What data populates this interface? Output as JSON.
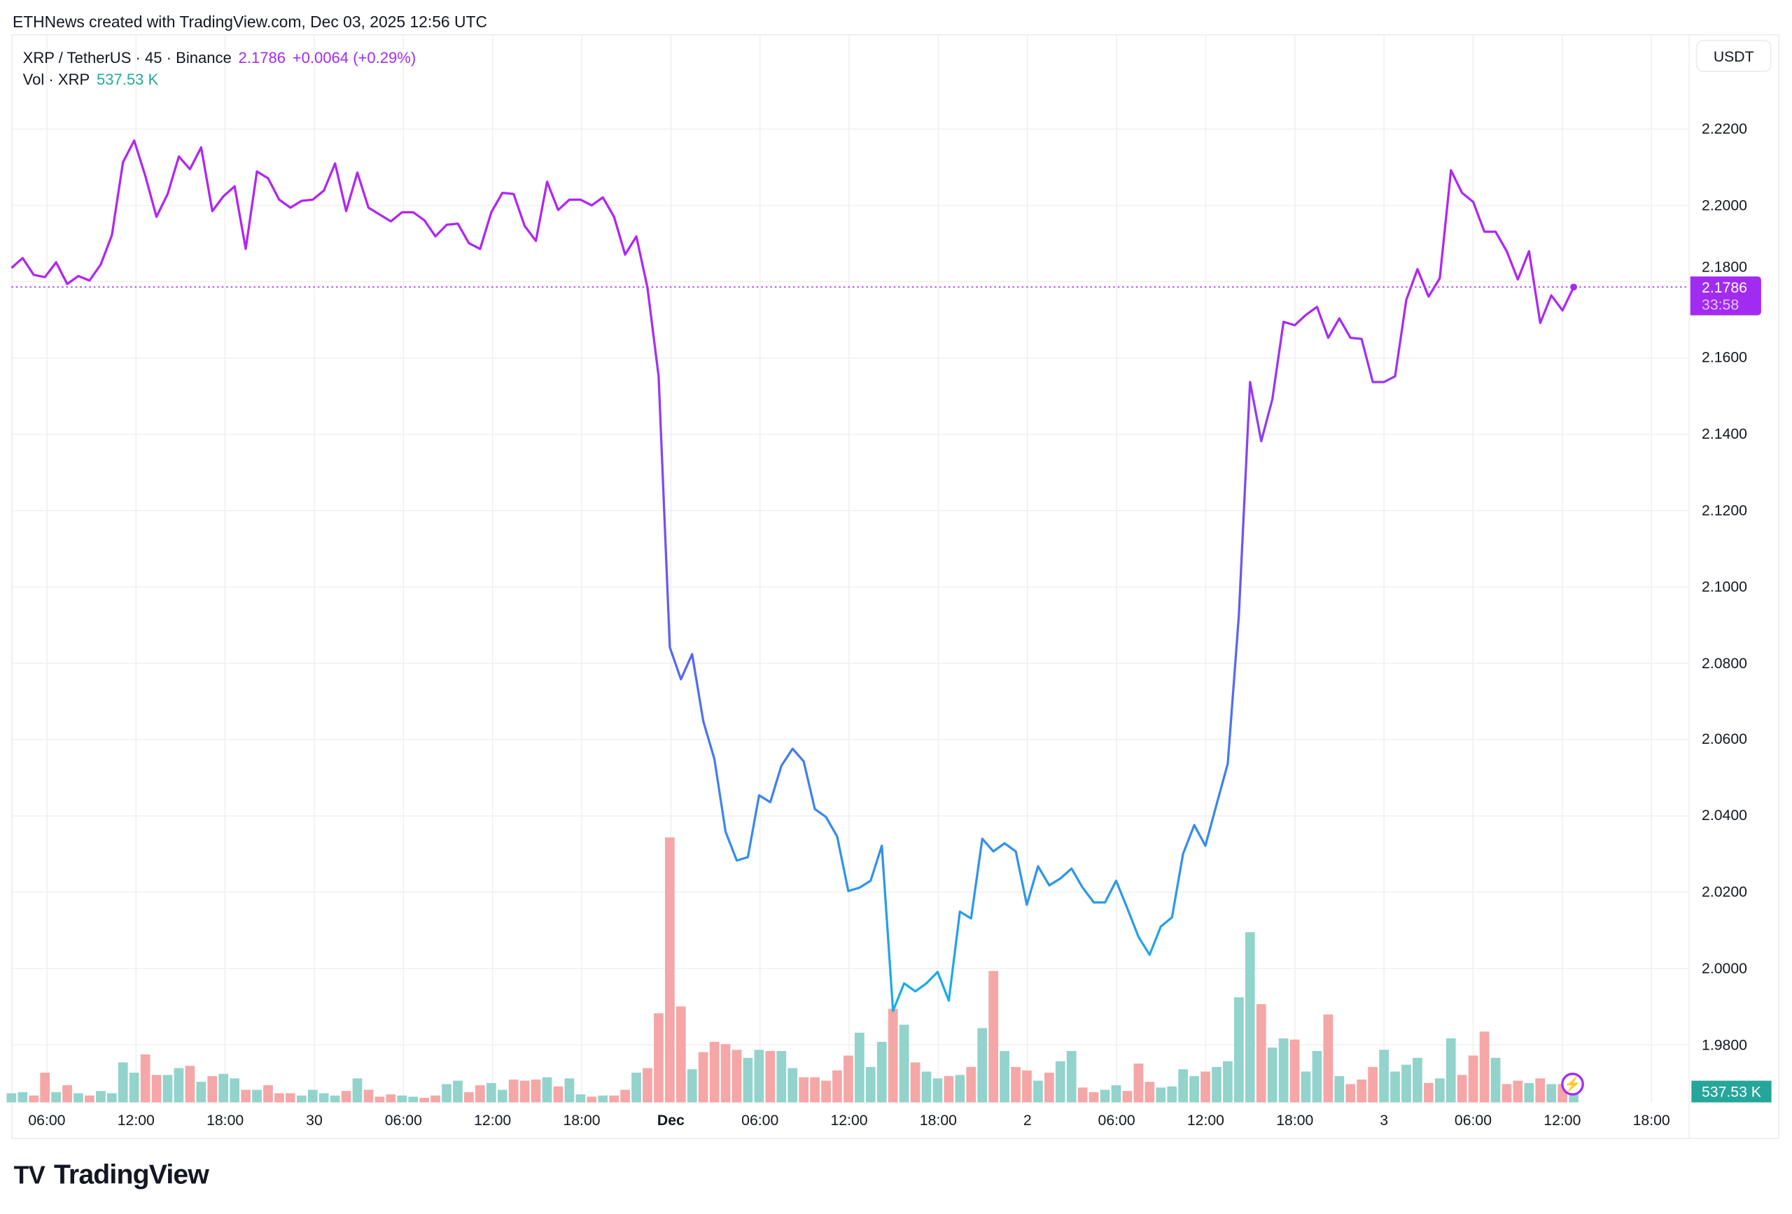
{
  "header": {
    "credit": "ETHNews created with TradingView.com, Dec 03, 2025 12:56 UTC"
  },
  "legend": {
    "symbol": "XRP / TetherUS · 45 · Binance",
    "price": "2.1786",
    "change": "+0.0064 (+0.29%)",
    "vol_label": "Vol · XRP",
    "vol_value": "537.53 K"
  },
  "currency_button": "USDT",
  "price_tag": {
    "price": "2.1786",
    "countdown": "33:58"
  },
  "volume_tag": "537.53 K",
  "logo": {
    "mark": "TV",
    "text": "TradingView"
  },
  "colors": {
    "accent": "#a22bf2",
    "line_top": "#b025f5",
    "line_mid": "#5a63f2",
    "line_bottom": "#16b0e8",
    "vol_up": "#92d3cb",
    "vol_down": "#f5a6a6",
    "vol_tag": "#26a69a"
  },
  "chart_data": {
    "type": "line",
    "title": "XRP / TetherUS · 45 · Binance",
    "ylabel": "USDT",
    "ylim": [
      1.965,
      2.245
    ],
    "y_ticks": [
      "2.2200",
      "2.2000",
      "2.1800",
      "2.1600",
      "2.1400",
      "2.1200",
      "2.1000",
      "2.0800",
      "2.0600",
      "2.0400",
      "2.0200",
      "2.0000",
      "1.9800"
    ],
    "x_ticks": [
      {
        "label": "06:00",
        "bold": false
      },
      {
        "label": "12:00",
        "bold": false
      },
      {
        "label": "18:00",
        "bold": false
      },
      {
        "label": "30",
        "bold": false
      },
      {
        "label": "06:00",
        "bold": false
      },
      {
        "label": "12:00",
        "bold": false
      },
      {
        "label": "18:00",
        "bold": false
      },
      {
        "label": "Dec",
        "bold": true
      },
      {
        "label": "06:00",
        "bold": false
      },
      {
        "label": "12:00",
        "bold": false
      },
      {
        "label": "18:00",
        "bold": false
      },
      {
        "label": "2",
        "bold": false
      },
      {
        "label": "06:00",
        "bold": false
      },
      {
        "label": "12:00",
        "bold": false
      },
      {
        "label": "18:00",
        "bold": false
      },
      {
        "label": "3",
        "bold": false
      },
      {
        "label": "06:00",
        "bold": false
      },
      {
        "label": "12:00",
        "bold": false
      },
      {
        "label": "18:00",
        "bold": false
      }
    ],
    "grid": true,
    "last_price": 2.1786,
    "series": [
      {
        "name": "Close",
        "values": [
          2.1836,
          2.1862,
          2.1818,
          2.1812,
          2.1851,
          2.1794,
          2.1815,
          2.1803,
          2.1845,
          2.1922,
          2.2113,
          2.217,
          2.2077,
          2.197,
          2.203,
          2.2128,
          2.2095,
          2.2152,
          2.1985,
          2.2024,
          2.205,
          2.1886,
          2.2089,
          2.2071,
          2.2015,
          2.1994,
          2.2012,
          2.2015,
          2.2039,
          2.211,
          2.1985,
          2.2086,
          2.1994,
          2.1976,
          2.1958,
          2.1982,
          2.1982,
          2.1961,
          2.1919,
          2.1949,
          2.1952,
          2.1901,
          2.1886,
          2.1982,
          2.2033,
          2.203,
          2.1946,
          2.1907,
          2.2062,
          2.1988,
          2.2015,
          2.2015,
          2.2,
          2.2021,
          2.197,
          2.1871,
          2.1919,
          2.1785,
          2.1552,
          2.0842,
          2.0758,
          2.0824,
          2.0648,
          2.0549,
          2.0358,
          2.0283,
          2.0292,
          2.0454,
          2.0436,
          2.0531,
          2.0576,
          2.0543,
          2.0418,
          2.0397,
          2.0346,
          2.0203,
          2.0212,
          2.023,
          2.0322,
          1.9889,
          1.9961,
          1.994,
          1.9961,
          1.9991,
          1.9916,
          2.0149,
          2.0131,
          2.034,
          2.0307,
          2.0328,
          2.0307,
          2.0167,
          2.0268,
          2.0218,
          2.0236,
          2.0262,
          2.0212,
          2.0173,
          2.0173,
          2.023,
          2.0158,
          2.0083,
          2.0036,
          2.011,
          2.0134,
          2.0301,
          2.0376,
          2.0322,
          2.043,
          2.0537,
          2.0925,
          2.1537,
          2.1382,
          2.1492,
          2.1695,
          2.1686,
          2.1713,
          2.1734,
          2.1653,
          2.1704,
          2.1653,
          2.165,
          2.1537,
          2.1537,
          2.1552,
          2.1752,
          2.1833,
          2.1761,
          2.1809,
          2.2092,
          2.2033,
          2.2009,
          2.1931,
          2.1931,
          2.188,
          2.1806,
          2.188,
          2.1692,
          2.1764,
          2.1725,
          2.1786
        ]
      },
      {
        "name": "Volume (K XRP)",
        "values": [
          253,
          284,
          190,
          822,
          284,
          474,
          253,
          190,
          316,
          253,
          1106,
          822,
          1327,
          758,
          758,
          948,
          1011,
          569,
          727,
          790,
          664,
          348,
          348,
          474,
          253,
          253,
          190,
          348,
          253,
          190,
          316,
          664,
          348,
          158,
          221,
          190,
          158,
          126,
          190,
          506,
          600,
          284,
          474,
          537,
          348,
          632,
          600,
          632,
          695,
          442,
          664,
          221,
          158,
          190,
          190,
          348,
          822,
          948,
          2465,
          7331,
          2654,
          916,
          1390,
          1675,
          1612,
          1454,
          1232,
          1454,
          1422,
          1422,
          948,
          695,
          695,
          600,
          885,
          1296,
          1928,
          980,
          1675,
          2591,
          2149,
          1106,
          853,
          664,
          727,
          758,
          980,
          2054,
          3634,
          1422,
          980,
          885,
          600,
          822,
          1138,
          1422,
          411,
          284,
          348,
          474,
          316,
          1074,
          569,
          411,
          442,
          916,
          727,
          853,
          980,
          1138,
          2907,
          4708,
          2718,
          1517,
          1770,
          1738,
          853,
          1422,
          2433,
          727,
          506,
          632,
          980,
          1454,
          853,
          1043,
          1232,
          537,
          664,
          1770,
          758,
          1296,
          1959,
          1232,
          506,
          600,
          537,
          664,
          506,
          506,
          538
        ]
      }
    ]
  }
}
